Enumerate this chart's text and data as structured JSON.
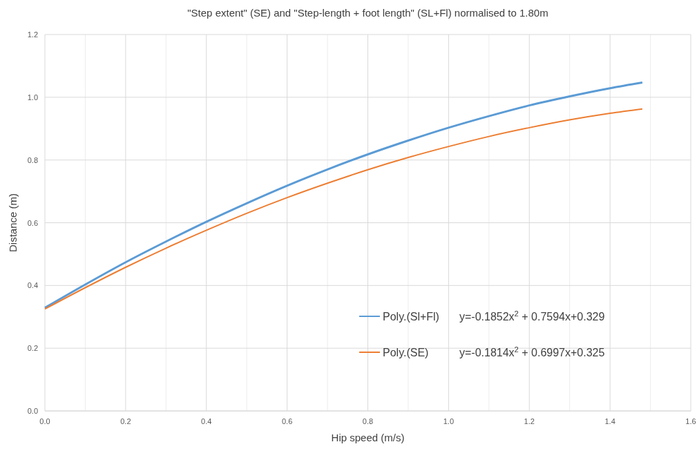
{
  "chart_data": {
    "type": "line",
    "title": "\"Step extent\" (SE) and \"Step-length + foot length\" (SL+Fl) normalised to 1.80m",
    "xlabel": "Hip speed (m/s)",
    "ylabel": "Distance (m)",
    "annotations": [
      "y=-0.1852x$^{2}$ + 0.7594x+0.329",
      "y=-0.1814x$^{2}$ + 0.6997x+0.325"
    ],
    "x": [
      0,
      0.1,
      0.2,
      0.3,
      0.4,
      0.5,
      0.6,
      0.7,
      0.8,
      0.9,
      1.0,
      1.1,
      1.2,
      1.3,
      1.4,
      1.48
    ],
    "series": [
      {
        "name": "Poly.(Sl+Fl)",
        "color": "#5b9bd5",
        "values": [
          0.329,
          0.403,
          0.474,
          0.54,
          0.603,
          0.662,
          0.718,
          0.77,
          0.818,
          0.862,
          0.903,
          0.94,
          0.974,
          1.003,
          1.029,
          1.047
        ]
      },
      {
        "name": "Poly.(SE)",
        "color": "#ed7d31",
        "values": [
          0.325,
          0.393,
          0.458,
          0.519,
          0.576,
          0.63,
          0.68,
          0.726,
          0.769,
          0.808,
          0.843,
          0.875,
          0.903,
          0.928,
          0.949,
          0.963
        ]
      }
    ],
    "xlim": [
      0,
      1.6
    ],
    "ylim": [
      0,
      1.2
    ],
    "xticks": [
      {
        "value": 0,
        "label": "0.0"
      },
      {
        "value": 0.1,
        "label": null
      },
      {
        "value": 0.2,
        "label": "0.2"
      },
      {
        "value": 0.3,
        "label": null
      },
      {
        "value": 0.4,
        "label": "0.4"
      },
      {
        "value": 0.5,
        "label": null
      },
      {
        "value": 0.6,
        "label": "0.6"
      },
      {
        "value": 0.7,
        "label": null
      },
      {
        "value": 0.8,
        "label": "0.8"
      },
      {
        "value": 0.9,
        "label": null
      },
      {
        "value": 1.0,
        "label": "1.0"
      },
      {
        "value": 1.1,
        "label": null
      },
      {
        "value": 1.2,
        "label": "1.2"
      },
      {
        "value": 1.3,
        "label": null
      },
      {
        "value": 1.4,
        "label": "1.4"
      },
      {
        "value": 1.5,
        "label": null
      },
      {
        "value": 1.6,
        "label": "1.6"
      }
    ],
    "yticks": [
      {
        "value": 0,
        "label": "0.0"
      },
      {
        "value": 0.2,
        "label": "0.2"
      },
      {
        "value": 0.4,
        "label": "0.4"
      },
      {
        "value": 0.6,
        "label": "0.6"
      },
      {
        "value": 0.8,
        "label": "0.8"
      },
      {
        "value": 1.0,
        "label": "1.0"
      },
      {
        "value": 1.2,
        "label": "1.2"
      }
    ],
    "grid": true,
    "legend": "bottom right",
    "marker": "none",
    "line_style": "solid"
  }
}
